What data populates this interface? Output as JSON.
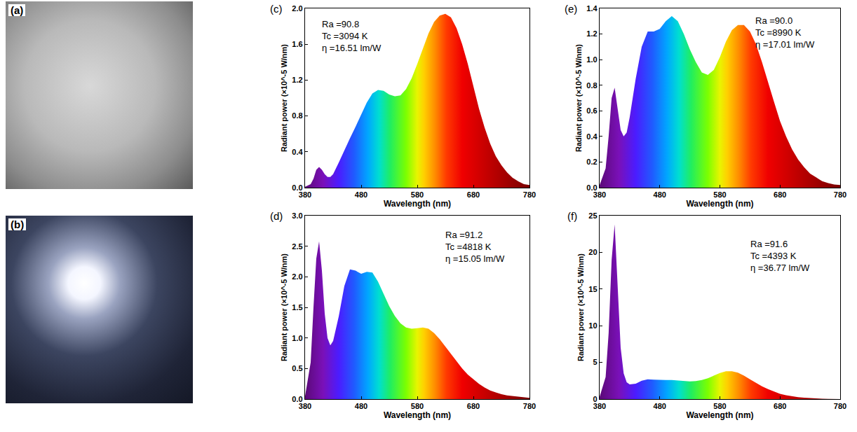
{
  "photo_panels": [
    "(a)",
    "(b)"
  ],
  "chart_data": [
    {
      "type": "area",
      "panel": "(c)",
      "x": [
        380,
        390,
        395,
        400,
        405,
        410,
        415,
        420,
        425,
        430,
        440,
        450,
        460,
        470,
        480,
        490,
        500,
        510,
        520,
        530,
        540,
        550,
        560,
        570,
        580,
        590,
        600,
        610,
        620,
        630,
        640,
        650,
        660,
        670,
        680,
        690,
        700,
        710,
        720,
        730,
        740,
        750,
        760,
        770,
        780
      ],
      "values": [
        0.01,
        0.04,
        0.1,
        0.2,
        0.23,
        0.2,
        0.15,
        0.12,
        0.12,
        0.15,
        0.28,
        0.42,
        0.55,
        0.68,
        0.82,
        0.95,
        1.05,
        1.09,
        1.08,
        1.04,
        1.02,
        1.03,
        1.1,
        1.22,
        1.38,
        1.55,
        1.72,
        1.85,
        1.92,
        1.94,
        1.9,
        1.78,
        1.6,
        1.38,
        1.12,
        0.88,
        0.67,
        0.49,
        0.35,
        0.25,
        0.17,
        0.11,
        0.07,
        0.04,
        0.03
      ],
      "xlim": [
        380,
        780
      ],
      "xticks": [
        380,
        480,
        580,
        680,
        780
      ],
      "ylim": [
        0,
        2.0
      ],
      "yticks": [
        {
          "value": 0,
          "label": "0.0"
        },
        0.4,
        0.8,
        1.2,
        1.6,
        {
          "value": 2,
          "label": "2.0"
        }
      ],
      "x_label": "Wavelength (nm)",
      "y_label": "Radiant power (×10^-5 W/nm)",
      "annotations": [
        "Ra =90.8",
        "Tc =3094 K",
        "η =16.51 lm/W"
      ],
      "grid": false
    },
    {
      "type": "area",
      "panel": "(d)",
      "x": [
        380,
        390,
        395,
        400,
        405,
        410,
        415,
        420,
        425,
        430,
        440,
        450,
        460,
        470,
        480,
        490,
        500,
        510,
        520,
        530,
        540,
        550,
        560,
        570,
        580,
        590,
        600,
        610,
        620,
        630,
        640,
        650,
        660,
        670,
        680,
        690,
        700,
        710,
        720,
        730,
        740,
        750,
        760,
        770,
        780
      ],
      "values": [
        0.05,
        0.6,
        1.5,
        2.3,
        2.58,
        2.1,
        1.4,
        1.0,
        0.88,
        0.95,
        1.35,
        1.85,
        2.12,
        2.1,
        2.05,
        2.08,
        2.07,
        1.92,
        1.72,
        1.52,
        1.36,
        1.24,
        1.17,
        1.15,
        1.16,
        1.17,
        1.15,
        1.08,
        0.98,
        0.86,
        0.74,
        0.62,
        0.5,
        0.4,
        0.32,
        0.25,
        0.19,
        0.14,
        0.11,
        0.08,
        0.06,
        0.05,
        0.04,
        0.03,
        0.02
      ],
      "xlim": [
        380,
        780
      ],
      "xticks": [
        380,
        480,
        580,
        680,
        780
      ],
      "ylim": [
        0,
        3.0
      ],
      "yticks": [
        {
          "value": 0,
          "label": "0.0"
        },
        0.5,
        {
          "value": 1,
          "label": "1.0"
        },
        1.5,
        {
          "value": 2,
          "label": "2.0"
        },
        2.5,
        {
          "value": 3,
          "label": "3.0"
        }
      ],
      "x_label": "Wavelength (nm)",
      "y_label": "Radiant power (×10^-5 W/nm)",
      "annotations": [
        "Ra =91.2",
        "Tc =4818 K",
        "η =15.05 lm/W"
      ],
      "grid": false
    },
    {
      "type": "area",
      "panel": "(e)",
      "x": [
        380,
        390,
        395,
        400,
        405,
        410,
        415,
        420,
        425,
        430,
        440,
        450,
        460,
        470,
        480,
        490,
        500,
        510,
        520,
        530,
        540,
        550,
        560,
        570,
        580,
        590,
        600,
        610,
        620,
        630,
        640,
        650,
        660,
        670,
        680,
        690,
        700,
        710,
        720,
        730,
        740,
        750,
        760,
        770,
        780
      ],
      "values": [
        0.02,
        0.15,
        0.4,
        0.7,
        0.78,
        0.62,
        0.45,
        0.4,
        0.43,
        0.55,
        0.85,
        1.1,
        1.22,
        1.22,
        1.24,
        1.3,
        1.34,
        1.3,
        1.2,
        1.08,
        0.98,
        0.9,
        0.88,
        0.92,
        1.02,
        1.14,
        1.23,
        1.27,
        1.27,
        1.22,
        1.12,
        0.98,
        0.82,
        0.67,
        0.52,
        0.4,
        0.3,
        0.22,
        0.16,
        0.11,
        0.08,
        0.05,
        0.035,
        0.025,
        0.02
      ],
      "xlim": [
        380,
        780
      ],
      "xticks": [
        380,
        480,
        580,
        680,
        780
      ],
      "ylim": [
        0,
        1.4
      ],
      "yticks": [
        {
          "value": 0,
          "label": "0.0"
        },
        0.2,
        0.4,
        0.6,
        0.8,
        {
          "value": 1,
          "label": "1.0"
        },
        1.2,
        1.4
      ],
      "x_label": "Wavelength (nm)",
      "y_label": "Radiant power (×10^-5 W/nm)",
      "annotations": [
        "Ra =90.0",
        "Tc =8990 K",
        "η =17.01 lm/W"
      ],
      "grid": false
    },
    {
      "type": "area",
      "panel": "(f)",
      "x": [
        380,
        390,
        395,
        400,
        405,
        410,
        415,
        420,
        425,
        430,
        440,
        450,
        460,
        470,
        480,
        490,
        500,
        510,
        520,
        530,
        540,
        550,
        560,
        570,
        580,
        590,
        600,
        610,
        620,
        630,
        640,
        650,
        660,
        670,
        680,
        690,
        700,
        710,
        720,
        730,
        740,
        750,
        760,
        770,
        780
      ],
      "values": [
        0.3,
        3,
        9,
        19,
        23.8,
        16,
        7,
        3.5,
        2.3,
        2.0,
        2.1,
        2.5,
        2.7,
        2.65,
        2.6,
        2.6,
        2.6,
        2.55,
        2.45,
        2.4,
        2.45,
        2.6,
        2.85,
        3.2,
        3.55,
        3.8,
        3.8,
        3.6,
        3.2,
        2.7,
        2.2,
        1.75,
        1.35,
        1.0,
        0.72,
        0.52,
        0.37,
        0.26,
        0.18,
        0.12,
        0.08,
        0.05,
        0.03,
        0.02,
        0.01
      ],
      "xlim": [
        380,
        780
      ],
      "xticks": [
        380,
        480,
        580,
        680,
        780
      ],
      "ylim": [
        0,
        25
      ],
      "yticks": [
        0,
        5,
        10,
        15,
        20,
        25
      ],
      "x_label": "Wavelength (nm)",
      "y_label": "Radiant power (×10^-5 W/nm)",
      "annotations": [
        "Ra =91.6",
        "Tc =4393 K",
        "η =36.77 lm/W"
      ],
      "grid": false
    }
  ]
}
